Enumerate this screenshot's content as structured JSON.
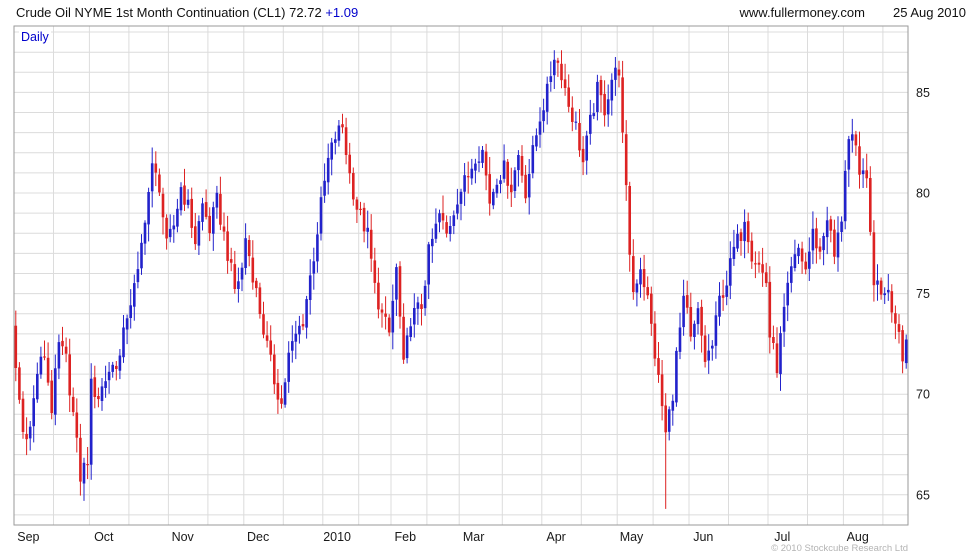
{
  "header": {
    "instrument": "Crude Oil NYME 1st Month Continuation (CL1)",
    "last_price": "72.72",
    "change": "+1.09",
    "website": "www.fullermoney.com",
    "date": "25 Aug 2010"
  },
  "chart_label": "Daily",
  "footer": {
    "copyright": "© 2010 Stockcube Research Ltd"
  },
  "colors": {
    "accent_blue": "#0000cc",
    "text": "#1a1a1a"
  },
  "chart_data": {
    "type": "candlestick",
    "title": "Crude Oil NYME 1st Month Continuation (CL1)",
    "frequency": "Daily",
    "last_close": 72.72,
    "change": 1.09,
    "y_ticks": [
      65,
      70,
      75,
      80,
      85
    ],
    "ylim": [
      63.5,
      88.3
    ],
    "x_labels": [
      "Sep",
      "Oct",
      "Nov",
      "Dec",
      "2010",
      "Feb",
      "Mar",
      "Apr",
      "May",
      "Jun",
      "Jul",
      "Aug"
    ],
    "month_start_days": [
      0,
      21,
      43,
      64,
      86,
      105,
      124,
      147,
      168,
      188,
      210,
      231
    ],
    "total_days": 249,
    "grid": true,
    "legend": "none",
    "up_color": "#2222cb",
    "down_color": "#dd2222",
    "grid_color": "#dcdcdc",
    "border_color": "#9a9a9a",
    "anchors": [
      [
        0,
        71.3
      ],
      [
        2,
        68.1
      ],
      [
        4,
        68.3
      ],
      [
        6,
        71.1
      ],
      [
        8,
        72.0
      ],
      [
        10,
        69.3
      ],
      [
        12,
        72.4
      ],
      [
        14,
        71.7
      ],
      [
        16,
        69.0
      ],
      [
        18,
        65.9
      ],
      [
        20,
        66.8
      ],
      [
        21,
        70.4
      ],
      [
        23,
        69.9
      ],
      [
        26,
        71.2
      ],
      [
        29,
        71.8
      ],
      [
        31,
        74.0
      ],
      [
        34,
        75.9
      ],
      [
        36,
        78.9
      ],
      [
        38,
        81.2
      ],
      [
        40,
        80.4
      ],
      [
        42,
        77.3
      ],
      [
        44,
        78.4
      ],
      [
        46,
        80.3
      ],
      [
        48,
        79.3
      ],
      [
        50,
        77.6
      ],
      [
        52,
        79.4
      ],
      [
        54,
        78.2
      ],
      [
        56,
        79.6
      ],
      [
        58,
        77.9
      ],
      [
        61,
        75.2
      ],
      [
        63,
        76.2
      ],
      [
        64,
        77.8
      ],
      [
        66,
        76.0
      ],
      [
        69,
        73.2
      ],
      [
        72,
        70.7
      ],
      [
        74,
        69.5
      ],
      [
        76,
        71.9
      ],
      [
        78,
        72.9
      ],
      [
        80,
        73.7
      ],
      [
        83,
        76.9
      ],
      [
        85,
        79.4
      ],
      [
        87,
        81.6
      ],
      [
        89,
        82.8
      ],
      [
        91,
        83.3
      ],
      [
        93,
        80.9
      ],
      [
        95,
        79.3
      ],
      [
        98,
        77.9
      ],
      [
        100,
        75.3
      ],
      [
        102,
        73.9
      ],
      [
        104,
        73.0
      ],
      [
        106,
        76.2
      ],
      [
        108,
        71.3
      ],
      [
        110,
        73.8
      ],
      [
        113,
        74.4
      ],
      [
        115,
        77.0
      ],
      [
        118,
        78.9
      ],
      [
        120,
        77.9
      ],
      [
        123,
        79.8
      ],
      [
        126,
        80.9
      ],
      [
        128,
        81.9
      ],
      [
        130,
        82.1
      ],
      [
        132,
        79.6
      ],
      [
        134,
        80.8
      ],
      [
        136,
        81.2
      ],
      [
        138,
        80.3
      ],
      [
        140,
        81.9
      ],
      [
        142,
        80.1
      ],
      [
        144,
        82.0
      ],
      [
        146,
        83.8
      ],
      [
        148,
        85.0
      ],
      [
        150,
        86.9
      ],
      [
        152,
        86.0
      ],
      [
        154,
        84.4
      ],
      [
        156,
        83.3
      ],
      [
        158,
        81.5
      ],
      [
        160,
        83.5
      ],
      [
        162,
        85.1
      ],
      [
        164,
        84.2
      ],
      [
        166,
        85.7
      ],
      [
        168,
        86.2
      ],
      [
        169,
        82.7
      ],
      [
        170,
        80.0
      ],
      [
        171,
        77.1
      ],
      [
        172,
        75.1
      ],
      [
        174,
        76.4
      ],
      [
        176,
        74.7
      ],
      [
        178,
        72.0
      ],
      [
        180,
        69.4
      ],
      [
        181,
        68.0
      ],
      [
        183,
        70.1
      ],
      [
        184,
        71.9
      ],
      [
        186,
        74.5
      ],
      [
        187,
        74.0
      ],
      [
        188,
        72.6
      ],
      [
        190,
        74.0
      ],
      [
        192,
        71.7
      ],
      [
        194,
        72.4
      ],
      [
        196,
        74.7
      ],
      [
        198,
        75.6
      ],
      [
        200,
        77.2
      ],
      [
        202,
        78.0
      ],
      [
        203,
        78.9
      ],
      [
        205,
        77.0
      ],
      [
        207,
        76.4
      ],
      [
        209,
        75.6
      ],
      [
        210,
        72.9
      ],
      [
        212,
        71.4
      ],
      [
        214,
        74.1
      ],
      [
        216,
        76.1
      ],
      [
        218,
        77.2
      ],
      [
        220,
        76.2
      ],
      [
        222,
        78.0
      ],
      [
        224,
        77.0
      ],
      [
        226,
        78.9
      ],
      [
        228,
        76.8
      ],
      [
        230,
        78.8
      ],
      [
        231,
        81.3
      ],
      [
        232,
        82.6
      ],
      [
        233,
        82.5
      ],
      [
        234,
        82.0
      ],
      [
        235,
        80.7
      ],
      [
        236,
        81.5
      ],
      [
        237,
        80.3
      ],
      [
        238,
        78.0
      ],
      [
        239,
        75.7
      ],
      [
        241,
        75.2
      ],
      [
        243,
        75.4
      ],
      [
        245,
        73.5
      ],
      [
        246,
        73.1
      ],
      [
        247,
        71.63
      ],
      [
        248,
        72.72
      ]
    ],
    "spikes": [
      [
        181,
        64.3
      ]
    ]
  }
}
